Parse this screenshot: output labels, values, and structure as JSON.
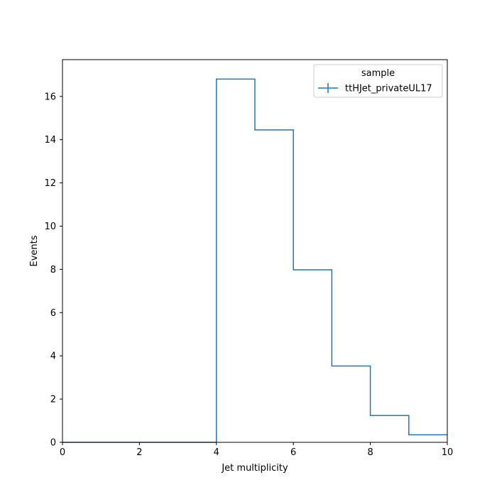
{
  "chart_data": {
    "type": "histogram",
    "xlabel": "Jet multiplicity",
    "ylabel": "Events",
    "xlim": [
      0,
      10
    ],
    "ylim": [
      0,
      17.7
    ],
    "xticks": [
      0,
      2,
      4,
      6,
      8,
      10
    ],
    "yticks": [
      0,
      2,
      4,
      6,
      8,
      10,
      12,
      14,
      16
    ],
    "bin_edges": [
      0,
      1,
      2,
      3,
      4,
      5,
      6,
      7,
      8,
      9,
      10
    ],
    "series": [
      {
        "name": "ttHJet_privateUL17",
        "color": "#1f77b4",
        "values": [
          0,
          0,
          0,
          0,
          16.8,
          14.45,
          7.98,
          3.53,
          1.24,
          0.35
        ]
      }
    ],
    "legend": {
      "title": "sample",
      "placement": "top-right"
    },
    "grid": false
  }
}
